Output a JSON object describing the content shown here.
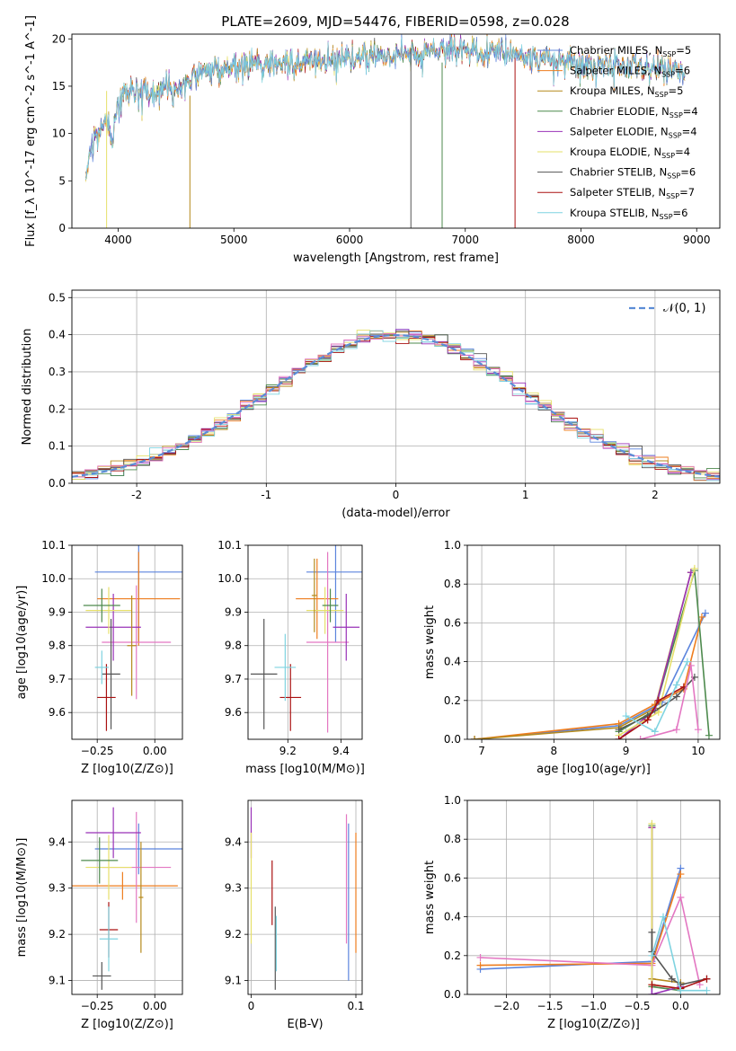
{
  "figure": {
    "title": "PLATE=2609, MJD=54476, FIBERID=0598, z=0.028"
  },
  "colors": [
    "#5b84dd",
    "#ee7d1e",
    "#b58a1c",
    "#4d8a4d",
    "#9932b8",
    "#e6e06a",
    "#555555",
    "#aa1111",
    "#7fd3e0",
    "#e377c2"
  ],
  "chart_data": [
    {
      "id": "spectrum",
      "type": "line",
      "xlabel": "wavelength [Angstrom, rest frame]",
      "ylabel": "Flux [f_λ 10^-17 erg cm^-2 s^-1 A^-1]",
      "xlim": [
        3600,
        9200
      ],
      "ylim": [
        0,
        20.5
      ],
      "xticks": [
        4000,
        5000,
        6000,
        7000,
        8000,
        9000
      ],
      "yticks": [
        0,
        5,
        10,
        15,
        20
      ],
      "grid": false,
      "legend": "right",
      "legend_entries": [
        {
          "text": "Chabrier MILES, N",
          "sub": "SSP",
          "suffix": "=5"
        },
        {
          "text": "Salpeter MILES, N",
          "sub": "SSP",
          "suffix": "=6"
        },
        {
          "text": "Kroupa MILES, N",
          "sub": "SSP",
          "suffix": "=5"
        },
        {
          "text": "Chabrier ELODIE, N",
          "sub": "SSP",
          "suffix": "=4"
        },
        {
          "text": "Salpeter ELODIE, N",
          "sub": "SSP",
          "suffix": "=4"
        },
        {
          "text": "Kroupa ELODIE, N",
          "sub": "SSP",
          "suffix": "=4"
        },
        {
          "text": "Chabrier STELIB, N",
          "sub": "SSP",
          "suffix": "=6"
        },
        {
          "text": "Salpeter STELIB, N",
          "sub": "SSP",
          "suffix": "=7"
        },
        {
          "text": "Kroupa STELIB, N",
          "sub": "SSP",
          "suffix": "=6"
        }
      ],
      "continuum": [
        [
          3720,
          6.0
        ],
        [
          3800,
          9.5
        ],
        [
          3900,
          11.5
        ],
        [
          3950,
          9.0
        ],
        [
          4000,
          13.5
        ],
        [
          4100,
          14.5
        ],
        [
          4300,
          14.2
        ],
        [
          4500,
          15.0
        ],
        [
          4700,
          16.5
        ],
        [
          5000,
          17.2
        ],
        [
          5300,
          17.4
        ],
        [
          5600,
          17.6
        ],
        [
          6000,
          18.0
        ],
        [
          6500,
          18.5
        ],
        [
          7000,
          18.8
        ],
        [
          7500,
          18.3
        ],
        [
          8000,
          17.4
        ],
        [
          8500,
          17.0
        ],
        [
          8900,
          16.5
        ]
      ]
    },
    {
      "id": "residuals",
      "type": "step",
      "xlabel": "(data-model)/error",
      "ylabel": "Normed distribution",
      "xlim": [
        -2.5,
        2.5
      ],
      "ylim": [
        0,
        0.52
      ],
      "xticks": [
        -2,
        -1,
        0,
        1,
        2
      ],
      "yticks": [
        0.0,
        0.1,
        0.2,
        0.3,
        0.4,
        0.5
      ],
      "grid": true,
      "legend": "top-right",
      "legend_label": "𝒩(0, 1)",
      "bin_width": 0.1
    },
    {
      "id": "age-vs-z",
      "type": "errorbar",
      "xlabel": "Z [log10(Z/Z⊙)]",
      "ylabel": "age [log10(age/yr)]",
      "xlim": [
        -0.36,
        0.12
      ],
      "ylim": [
        9.52,
        10.1
      ],
      "xticks": [
        -0.25,
        0.0
      ],
      "xticklabels": [
        "−0.25",
        "0.00"
      ],
      "yticks": [
        9.6,
        9.7,
        9.8,
        9.9,
        10.0,
        10.1
      ],
      "grid": true,
      "points": [
        {
          "c": 0,
          "x": -0.07,
          "xe": 0.19,
          "y": 10.02,
          "ye": 0.21
        },
        {
          "c": 1,
          "x": -0.07,
          "xe": 0.18,
          "y": 9.94,
          "ye": 0.14
        },
        {
          "c": 9,
          "x": -0.08,
          "xe": 0.15,
          "y": 9.81,
          "ye": 0.17
        },
        {
          "c": 4,
          "x": -0.18,
          "xe": 0.12,
          "y": 9.855,
          "ye": 0.1
        },
        {
          "c": 5,
          "x": -0.2,
          "xe": 0.1,
          "y": 9.905,
          "ye": 0.07
        },
        {
          "c": 3,
          "x": -0.23,
          "xe": 0.08,
          "y": 9.92,
          "ye": 0.05
        },
        {
          "c": 6,
          "x": -0.19,
          "xe": 0.04,
          "y": 9.715,
          "ye": 0.165
        },
        {
          "c": 7,
          "x": -0.21,
          "xe": 0.04,
          "y": 9.645,
          "ye": 0.1
        },
        {
          "c": 8,
          "x": -0.23,
          "xe": 0.03,
          "y": 9.735,
          "ye": 0.05
        },
        {
          "c": 2,
          "x": -0.1,
          "xe": 0.02,
          "y": 9.8,
          "ye": 0.15
        }
      ]
    },
    {
      "id": "age-vs-mass",
      "type": "errorbar",
      "xlabel": "mass [log10(M/M⊙)]",
      "ylabel": "",
      "xlim": [
        9.05,
        9.48
      ],
      "ylim": [
        9.52,
        10.1
      ],
      "xticks": [
        9.2,
        9.4
      ],
      "yticks": [
        9.6,
        9.7,
        9.8,
        9.9,
        10.0,
        10.1
      ],
      "grid": true,
      "points": [
        {
          "c": 0,
          "x": 9.38,
          "xe": 0.11,
          "y": 10.02,
          "ye": 0.21
        },
        {
          "c": 1,
          "x": 9.31,
          "xe": 0.08,
          "y": 9.94,
          "ye": 0.12
        },
        {
          "c": 9,
          "x": 9.35,
          "xe": 0.08,
          "y": 9.81,
          "ye": 0.27
        },
        {
          "c": 4,
          "x": 9.42,
          "xe": 0.05,
          "y": 9.855,
          "ye": 0.1
        },
        {
          "c": 5,
          "x": 9.34,
          "xe": 0.07,
          "y": 9.905,
          "ye": 0.07
        },
        {
          "c": 3,
          "x": 9.36,
          "xe": 0.03,
          "y": 9.92,
          "ye": 0.05
        },
        {
          "c": 6,
          "x": 9.11,
          "xe": 0.05,
          "y": 9.715,
          "ye": 0.165
        },
        {
          "c": 7,
          "x": 9.21,
          "xe": 0.04,
          "y": 9.645,
          "ye": 0.1
        },
        {
          "c": 8,
          "x": 9.19,
          "xe": 0.04,
          "y": 9.735,
          "ye": 0.1
        },
        {
          "c": 2,
          "x": 9.3,
          "xe": 0.01,
          "y": 9.95,
          "ye": 0.11
        }
      ]
    },
    {
      "id": "weight-vs-age",
      "type": "line",
      "xlabel": "age [log10(age/yr)]",
      "ylabel": "mass weight",
      "xlim": [
        6.8,
        10.3
      ],
      "ylim": [
        0,
        1.0
      ],
      "xticks": [
        7,
        8,
        9,
        10
      ],
      "yticks": [
        0.0,
        0.2,
        0.4,
        0.6,
        0.8,
        1.0
      ],
      "grid": true,
      "series": [
        {
          "c": 0,
          "points": [
            [
              6.9,
              0.0
            ],
            [
              8.9,
              0.07
            ],
            [
              9.5,
              0.19
            ],
            [
              10.1,
              0.65
            ]
          ]
        },
        {
          "c": 1,
          "points": [
            [
              6.9,
              0.0
            ],
            [
              8.9,
              0.08
            ],
            [
              9.4,
              0.18
            ],
            [
              9.8,
              0.26
            ],
            [
              10.05,
              0.63
            ]
          ]
        },
        {
          "c": 2,
          "points": [
            [
              6.9,
              0.0
            ],
            [
              8.9,
              0.06
            ],
            [
              9.4,
              0.16
            ],
            [
              9.9,
              0.86
            ]
          ]
        },
        {
          "c": 3,
          "points": [
            [
              8.9,
              0.04
            ],
            [
              9.4,
              0.15
            ],
            [
              9.95,
              0.87
            ],
            [
              10.15,
              0.02
            ]
          ]
        },
        {
          "c": 4,
          "points": [
            [
              8.9,
              0.0
            ],
            [
              9.4,
              0.15
            ],
            [
              9.9,
              0.86
            ]
          ]
        },
        {
          "c": 5,
          "points": [
            [
              8.9,
              0.02
            ],
            [
              9.45,
              0.14
            ],
            [
              9.95,
              0.88
            ]
          ]
        },
        {
          "c": 6,
          "points": [
            [
              8.9,
              0.05
            ],
            [
              9.3,
              0.12
            ],
            [
              9.7,
              0.22
            ],
            [
              9.95,
              0.32
            ]
          ]
        },
        {
          "c": 7,
          "points": [
            [
              8.9,
              0.0
            ],
            [
              9.3,
              0.1
            ],
            [
              9.45,
              0.2
            ],
            [
              9.8,
              0.27
            ]
          ]
        },
        {
          "c": 8,
          "points": [
            [
              9.0,
              0.12
            ],
            [
              9.4,
              0.04
            ],
            [
              9.7,
              0.28
            ],
            [
              9.85,
              0.4
            ]
          ]
        },
        {
          "c": 9,
          "points": [
            [
              9.2,
              0.0
            ],
            [
              9.7,
              0.05
            ],
            [
              9.9,
              0.38
            ],
            [
              10.0,
              0.05
            ]
          ]
        }
      ]
    },
    {
      "id": "mass-vs-z",
      "type": "errorbar",
      "xlabel": "Z [log10(Z/Z⊙)]",
      "ylabel": "mass [log10(M/M⊙)]",
      "xlim": [
        -0.36,
        0.12
      ],
      "ylim": [
        9.07,
        9.49
      ],
      "xticks": [
        -0.25,
        0.0
      ],
      "xticklabels": [
        "−0.25",
        "0.00"
      ],
      "yticks": [
        9.1,
        9.2,
        9.3,
        9.4
      ],
      "grid": true,
      "points": [
        {
          "c": 0,
          "x": -0.07,
          "xe": 0.19,
          "y": 9.385,
          "ye": 0.055
        },
        {
          "c": 1,
          "x": -0.14,
          "xe": 0.24,
          "y": 9.305,
          "ye": 0.03
        },
        {
          "c": 9,
          "x": -0.08,
          "xe": 0.15,
          "y": 9.345,
          "ye": 0.12
        },
        {
          "c": 4,
          "x": -0.18,
          "xe": 0.12,
          "y": 9.42,
          "ye": 0.055
        },
        {
          "c": 5,
          "x": -0.2,
          "xe": 0.1,
          "y": 9.345,
          "ye": 0.07
        },
        {
          "c": 3,
          "x": -0.24,
          "xe": 0.08,
          "y": 9.36,
          "ye": 0.05
        },
        {
          "c": 6,
          "x": -0.23,
          "xe": 0.04,
          "y": 9.11,
          "ye": 0.03
        },
        {
          "c": 7,
          "x": -0.2,
          "xe": 0.04,
          "y": 9.21,
          "ye": 0.06
        },
        {
          "c": 8,
          "x": -0.2,
          "xe": 0.04,
          "y": 9.19,
          "ye": 0.07
        },
        {
          "c": 2,
          "x": -0.06,
          "xe": 0.01,
          "y": 9.28,
          "ye": 0.12
        }
      ]
    },
    {
      "id": "mass-vs-ebv",
      "type": "errorbar",
      "xlabel": "E(B-V)",
      "ylabel": "",
      "xlim": [
        -0.003,
        0.106
      ],
      "ylim": [
        9.07,
        9.49
      ],
      "xticks": [
        0.0,
        0.1
      ],
      "yticks": [
        9.1,
        9.2,
        9.3,
        9.4
      ],
      "grid": true,
      "points": [
        {
          "c": 4,
          "x": 0.0,
          "xe": 0,
          "y": 9.42,
          "ye": 0.055
        },
        {
          "c": 5,
          "x": 0.0,
          "xe": 0,
          "y": 9.3,
          "ye": 0.12
        },
        {
          "c": 7,
          "x": 0.02,
          "xe": 0,
          "y": 9.29,
          "ye": 0.07
        },
        {
          "c": 6,
          "x": 0.023,
          "xe": 0,
          "y": 9.17,
          "ye": 0.09
        },
        {
          "c": 8,
          "x": 0.024,
          "xe": 0,
          "y": 9.18,
          "ye": 0.06
        },
        {
          "c": 9,
          "x": 0.091,
          "xe": 0,
          "y": 9.32,
          "ye": 0.14
        },
        {
          "c": 0,
          "x": 0.093,
          "xe": 0,
          "y": 9.27,
          "ye": 0.17
        },
        {
          "c": 1,
          "x": 0.1,
          "xe": 0,
          "y": 9.29,
          "ye": 0.13
        }
      ]
    },
    {
      "id": "weight-vs-z",
      "type": "line",
      "xlabel": "Z [log10(Z/Z⊙)]",
      "ylabel": "mass weight",
      "xlim": [
        -2.45,
        0.45
      ],
      "ylim": [
        0,
        1.0
      ],
      "xticks": [
        -2.0,
        -1.5,
        -1.0,
        -0.5,
        0.0
      ],
      "xticklabels": [
        "−2.0",
        "−1.5",
        "−1.0",
        "−0.5",
        "0.0"
      ],
      "yticks": [
        0.0,
        0.2,
        0.4,
        0.6,
        0.8,
        1.0
      ],
      "grid": true,
      "series": [
        {
          "c": 0,
          "points": [
            [
              -2.3,
              0.13
            ],
            [
              -0.33,
              0.17
            ],
            [
              0.0,
              0.65
            ]
          ]
        },
        {
          "c": 1,
          "points": [
            [
              -2.3,
              0.15
            ],
            [
              -0.33,
              0.16
            ],
            [
              0.0,
              0.62
            ]
          ]
        },
        {
          "c": 9,
          "points": [
            [
              -2.3,
              0.19
            ],
            [
              -0.33,
              0.15
            ],
            [
              0.0,
              0.5
            ],
            [
              0.22,
              0.05
            ]
          ]
        },
        {
          "c": 2,
          "points": [
            [
              -0.33,
              0.86
            ],
            [
              -0.33,
              0.08
            ],
            [
              0.0,
              0.06
            ]
          ]
        },
        {
          "c": 3,
          "points": [
            [
              -0.33,
              0.87
            ],
            [
              -0.33,
              0.04
            ],
            [
              0.0,
              0.02
            ]
          ]
        },
        {
          "c": 4,
          "points": [
            [
              -0.33,
              0.86
            ],
            [
              -0.33,
              0.0
            ],
            [
              0.0,
              0.04
            ]
          ]
        },
        {
          "c": 5,
          "points": [
            [
              -0.33,
              0.88
            ],
            [
              -0.33,
              0.05
            ],
            [
              0.0,
              0.03
            ]
          ]
        },
        {
          "c": 6,
          "points": [
            [
              -0.33,
              0.32
            ],
            [
              -0.33,
              0.22
            ],
            [
              -0.1,
              0.08
            ],
            [
              0.0,
              0.05
            ],
            [
              0.3,
              0.08
            ]
          ]
        },
        {
          "c": 7,
          "points": [
            [
              -0.33,
              0.05
            ],
            [
              0.0,
              0.03
            ],
            [
              0.3,
              0.08
            ]
          ]
        },
        {
          "c": 8,
          "points": [
            [
              -0.33,
              0.2
            ],
            [
              -0.2,
              0.4
            ],
            [
              0.0,
              0.02
            ],
            [
              0.3,
              0.02
            ]
          ]
        }
      ]
    }
  ]
}
